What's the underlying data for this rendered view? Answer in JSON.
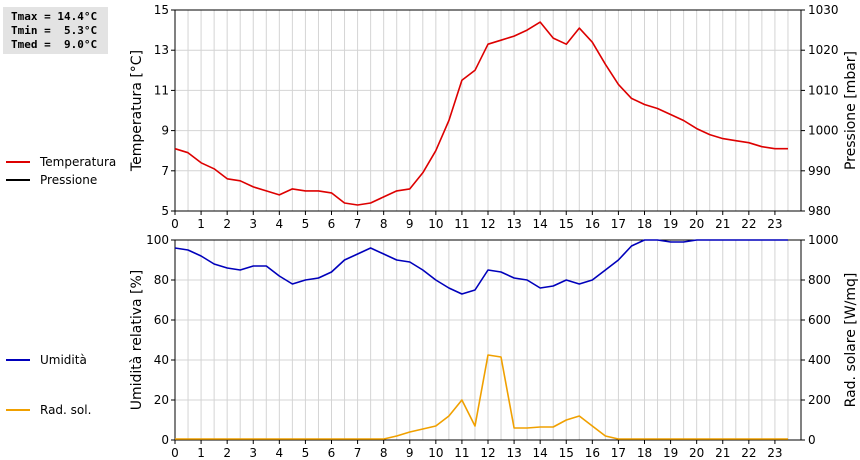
{
  "stats": {
    "tmax": "Tmax = 14.4°C",
    "tmin": "Tmin =  5.3°C",
    "tmed": "Tmed =  9.0°C"
  },
  "legend": {
    "top": [
      {
        "label": "Temperatura",
        "color": "#dd0000"
      },
      {
        "label": "Pressione",
        "color": "#000000"
      }
    ],
    "bottom": [
      {
        "label": "Umidità",
        "color": "#0000bb"
      },
      {
        "label": "Rad. sol.",
        "color": "#f0a000"
      }
    ]
  },
  "chart_data": [
    {
      "type": "line",
      "ylabel": "Temperatura [°C]",
      "y2label": "Pressione [mbar]",
      "xlim": [
        0,
        24
      ],
      "ylim": [
        5,
        15
      ],
      "y2lim": [
        980,
        1030
      ],
      "x_ticks": [
        "0",
        "1",
        "2",
        "3",
        "4",
        "5",
        "6",
        "7",
        "8",
        "9",
        "10",
        "11",
        "12",
        "13",
        "14",
        "15",
        "16",
        "17",
        "18",
        "19",
        "20",
        "21",
        "22",
        "23"
      ],
      "y_ticks": [
        "5",
        "7",
        "9",
        "11",
        "13",
        "15"
      ],
      "y2_ticks": [
        "980",
        "990",
        "1000",
        "1010",
        "1020",
        "1030"
      ],
      "grid": true,
      "series": [
        {
          "name": "Temperatura",
          "color": "#dd0000",
          "x": [
            0,
            0.5,
            1,
            1.5,
            2,
            2.5,
            3,
            3.5,
            4,
            4.5,
            5,
            5.5,
            6,
            6.5,
            7,
            7.5,
            8,
            8.5,
            9,
            9.5,
            10,
            10.5,
            11,
            11.5,
            12,
            12.5,
            13,
            13.5,
            14,
            14.5,
            15,
            15.5,
            16,
            16.5,
            17,
            17.5,
            18,
            18.5,
            19,
            19.5,
            20,
            20.5,
            21,
            21.5,
            22,
            22.5,
            23,
            23.5
          ],
          "values": [
            8.1,
            7.9,
            7.4,
            7.1,
            6.6,
            6.5,
            6.2,
            6.0,
            5.8,
            6.1,
            6.0,
            6.0,
            5.9,
            5.4,
            5.3,
            5.4,
            5.7,
            6.0,
            6.1,
            6.9,
            8.0,
            9.5,
            11.5,
            12.0,
            13.3,
            13.5,
            13.7,
            14.0,
            14.4,
            13.6,
            13.3,
            14.1,
            13.4,
            12.3,
            11.3,
            10.6,
            10.3,
            10.1,
            9.8,
            9.5,
            9.1,
            8.8,
            8.6,
            8.5,
            8.4,
            8.2,
            8.1,
            8.1
          ]
        },
        {
          "name": "Pressione",
          "color": "#000000",
          "x": [],
          "values": []
        }
      ]
    },
    {
      "type": "line",
      "ylabel": "Umidità relativa [%]",
      "y2label": "Rad. solare [W/mq]",
      "xlim": [
        0,
        24
      ],
      "ylim": [
        0,
        100
      ],
      "y2lim": [
        0,
        1000
      ],
      "x_ticks": [
        "0",
        "1",
        "2",
        "3",
        "4",
        "5",
        "6",
        "7",
        "8",
        "9",
        "10",
        "11",
        "12",
        "13",
        "14",
        "15",
        "16",
        "17",
        "18",
        "19",
        "20",
        "21",
        "22",
        "23"
      ],
      "y_ticks": [
        "0",
        "20",
        "40",
        "60",
        "80",
        "100"
      ],
      "y2_ticks": [
        "0",
        "200",
        "400",
        "600",
        "800",
        "1000"
      ],
      "grid": true,
      "series": [
        {
          "name": "Umidità",
          "color": "#0000bb",
          "axis": "left",
          "x": [
            0,
            0.5,
            1,
            1.5,
            2,
            2.5,
            3,
            3.5,
            4,
            4.5,
            5,
            5.5,
            6,
            6.5,
            7,
            7.5,
            8,
            8.5,
            9,
            9.5,
            10,
            10.5,
            11,
            11.5,
            12,
            12.5,
            13,
            13.5,
            14,
            14.5,
            15,
            15.5,
            16,
            16.5,
            17,
            17.5,
            18,
            18.5,
            19,
            19.5,
            20,
            20.5,
            21,
            21.5,
            22,
            22.5,
            23,
            23.5
          ],
          "values": [
            96,
            95,
            92,
            88,
            86,
            85,
            87,
            87,
            82,
            78,
            80,
            81,
            84,
            90,
            93,
            96,
            93,
            90,
            89,
            85,
            80,
            76,
            73,
            75,
            85,
            84,
            81,
            80,
            76,
            77,
            80,
            78,
            80,
            85,
            90,
            97,
            100,
            100,
            99,
            99,
            100,
            100,
            100,
            100,
            100,
            100,
            100,
            100
          ]
        },
        {
          "name": "Rad. sol.",
          "color": "#f0a000",
          "axis": "right",
          "x": [
            0,
            1,
            2,
            3,
            4,
            5,
            6,
            7,
            7.5,
            8,
            8.5,
            9,
            9.5,
            10,
            10.5,
            11,
            11.5,
            12,
            12.5,
            13,
            13.5,
            14,
            14.5,
            15,
            15.5,
            16,
            16.5,
            17,
            17.5,
            18,
            19,
            20,
            21,
            22,
            23,
            23.5
          ],
          "values": [
            5,
            5,
            5,
            5,
            5,
            5,
            5,
            5,
            5,
            5,
            20,
            40,
            55,
            70,
            120,
            200,
            70,
            425,
            415,
            60,
            60,
            65,
            65,
            100,
            120,
            70,
            20,
            5,
            5,
            5,
            5,
            5,
            5,
            5,
            5,
            5
          ]
        }
      ]
    }
  ]
}
